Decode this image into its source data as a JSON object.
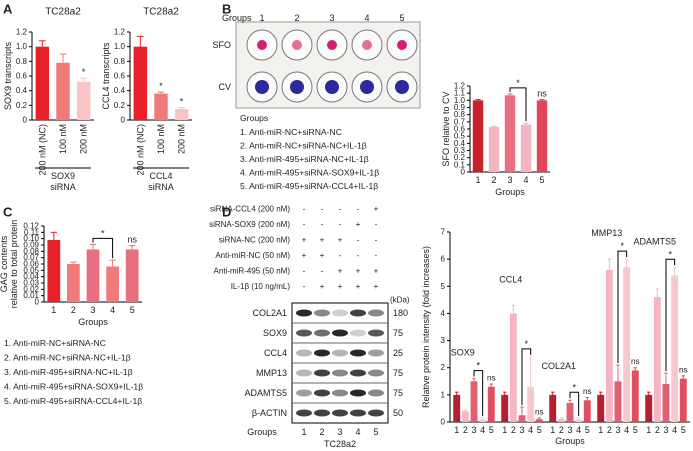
{
  "panels": [
    "A",
    "B",
    "C",
    "D"
  ],
  "chart_data": [
    {
      "type": "bar",
      "title": "TC28a2",
      "ylabel": "SOX9 transcripts",
      "categories": [
        "200 nM (NC)",
        "100 nM",
        "200 nM"
      ],
      "values": [
        1.0,
        0.78,
        0.52
      ],
      "errors": [
        0.08,
        0.12,
        0.05
      ],
      "colors": [
        "#e8202a",
        "#f07a7a",
        "#f8c4c4"
      ],
      "ylim": [
        0,
        1.2
      ],
      "yticks": [
        0,
        0.2,
        0.4,
        0.6,
        0.8,
        {
          "value": 1,
          "label": "1.0"
        },
        1.2
      ],
      "group_label": "SOX9",
      "group_sub": "siRNA",
      "annotations": [
        {
          "text": "*",
          "at": "200 nM"
        }
      ]
    },
    {
      "type": "bar",
      "title": "TC28a2",
      "ylabel": "CCL4 transcripts",
      "categories": [
        "200 nM (NC)",
        "100 nM",
        "200 nM"
      ],
      "values": [
        1.0,
        0.36,
        0.15
      ],
      "errors": [
        0.14,
        0.02,
        0.02
      ],
      "colors": [
        "#e8202a",
        "#f07a7a",
        "#f8c4c4"
      ],
      "ylim": [
        0,
        1.2
      ],
      "yticks": [
        0,
        0.2,
        0.4,
        0.6,
        0.8,
        {
          "value": 1,
          "label": "1.0"
        },
        1.2
      ],
      "group_label": "CCL4",
      "group_sub": "siRNA",
      "annotations": [
        {
          "text": "*",
          "at": "100 nM"
        },
        {
          "text": "*",
          "at": "200 nM"
        }
      ]
    },
    {
      "type": "bar",
      "ylabel": "SFO relative to CV",
      "xlabel": "Groups",
      "categories": [
        "1",
        "2",
        "3",
        "4",
        "5"
      ],
      "values": [
        1.0,
        0.63,
        1.07,
        0.66,
        1.0
      ],
      "errors": [
        0.01,
        0.01,
        0.02,
        0.02,
        0.01
      ],
      "colors": [
        "#c8202c",
        "#f4b6c0",
        "#e8707e",
        "#f4b6c0",
        "#e04658"
      ],
      "ylim": [
        0,
        1.2
      ],
      "yticks": [
        0,
        0.1,
        0.2,
        0.3,
        0.4,
        0.5,
        0.6,
        0.7,
        0.8,
        0.9,
        {
          "value": 1,
          "label": "1.0"
        },
        1.1,
        1.2
      ],
      "annotations": [
        {
          "text": "*",
          "from": "3",
          "to": "4"
        },
        {
          "text": "ns",
          "at": "5"
        }
      ]
    },
    {
      "type": "bar",
      "ylabel": [
        "GAG contents",
        "relative to total protein"
      ],
      "xlabel": "Groups",
      "categories": [
        "1",
        "2",
        "3",
        "4",
        "5"
      ],
      "values": [
        0.098,
        0.06,
        0.083,
        0.056,
        0.083
      ],
      "errors": [
        0.012,
        0.003,
        0.008,
        0.01,
        0.006
      ],
      "colors": [
        "#e8202a",
        "#f07a7a",
        "#e8707e",
        "#f07a7a",
        "#e8707e"
      ],
      "ylim": [
        0,
        0.12
      ],
      "yticks": [
        0,
        0.01,
        0.02,
        0.03,
        0.04,
        0.05,
        0.06,
        0.07,
        0.08,
        0.09,
        {
          "value": 0.1,
          "label": "0.10"
        },
        0.11,
        {
          "value": 0.12,
          "label": "0.12"
        }
      ],
      "annotations": [
        {
          "text": "*",
          "from": "3",
          "to": "4"
        },
        {
          "text": "ns",
          "at": "5"
        }
      ]
    },
    {
      "type": "grouped_bar",
      "ylabel": "Relative protein intensity (fold increases)",
      "xlabel": "Groups",
      "categories": [
        "SOX9",
        "CCL4",
        "COL2A1",
        "MMP13",
        "ADAMTS5"
      ],
      "bar_labels": [
        "1",
        "2",
        "3",
        "4",
        "5"
      ],
      "series": [
        {
          "color": "#b5202e",
          "values": [
            1.0,
            1.0,
            1.0,
            1.0,
            1.0
          ],
          "errors": [
            0.1,
            0.1,
            0.1,
            0.1,
            0.1
          ]
        },
        {
          "color": "#f4b6c0",
          "values": [
            0.4,
            4.0,
            0.1,
            5.6,
            4.6
          ],
          "errors": [
            0.05,
            0.3,
            0.05,
            0.4,
            0.3
          ]
        },
        {
          "color": "#e06070",
          "values": [
            1.5,
            0.25,
            0.7,
            1.5,
            1.4
          ],
          "errors": [
            0.1,
            0.3,
            0.1,
            0.6,
            0.4
          ]
        },
        {
          "color": "#f7c8d0",
          "values": [
            0.1,
            1.3,
            0.1,
            5.7,
            5.4
          ],
          "errors": [
            0.05,
            1.1,
            0.05,
            0.3,
            0.3
          ]
        },
        {
          "color": "#e05060",
          "values": [
            1.3,
            0.1,
            0.8,
            1.9,
            1.6
          ],
          "errors": [
            0.1,
            0.05,
            0.1,
            0.1,
            0.1
          ]
        }
      ],
      "ylim": [
        0,
        7
      ],
      "yticks": [
        0,
        1,
        2,
        3,
        4,
        5,
        6,
        7
      ],
      "annotations": [
        {
          "text": "*",
          "group": "SOX9",
          "from": "3",
          "to": "4"
        },
        {
          "text": "ns",
          "group": "SOX9",
          "at": "5"
        },
        {
          "text": "*",
          "group": "CCL4",
          "from": "3",
          "to": "4"
        },
        {
          "text": "ns",
          "group": "CCL4",
          "at": "5"
        },
        {
          "text": "*",
          "group": "COL2A1",
          "from": "3",
          "to": "4"
        },
        {
          "text": "ns",
          "group": "COL2A1",
          "at": "5"
        },
        {
          "text": "*",
          "group": "MMP13",
          "from": "3",
          "to": "4"
        },
        {
          "text": "ns",
          "group": "MMP13",
          "at": "5"
        },
        {
          "text": "*",
          "group": "ADAMTS5",
          "from": "3",
          "to": "4"
        },
        {
          "text": "ns",
          "group": "ADAMTS5",
          "at": "5"
        }
      ]
    }
  ],
  "plate": {
    "header": "Groups",
    "lanes": [
      "1",
      "2",
      "3",
      "4",
      "5"
    ],
    "rows": [
      "SFO",
      "CV"
    ]
  },
  "legend_b": {
    "title": "Groups",
    "items": [
      "1. Anti-miR-NC+siRNA-NC",
      "2. Anti-miR-NC+siRNA-NC+IL-1β",
      "3. Anti-miR-495+siRNA-NC+IL-1β",
      "4. Anti-miR-495+siRNA-SOX9+IL-1β",
      "5. Anti-miR-495+siRNA-CCL4+IL-1β"
    ]
  },
  "legend_c": {
    "items": [
      "1. Anti-miR-NC+siRNA-NC",
      "2. Anti-miR-NC+siRNA-NC+IL-1β",
      "3. Anti-miR-495+siRNA-NC+IL-1β",
      "4. Anti-miR-495+siRNA-SOX9+IL-1β",
      "5. Anti-miR-495+siRNA-CCL4+IL-1β"
    ]
  },
  "blot": {
    "treatments": [
      {
        "label": "siRNA-CCL4 (200 nM)",
        "marks": [
          "-",
          "-",
          "-",
          "-",
          "+"
        ]
      },
      {
        "label": "siRNA-SOX9 (200 nM)",
        "marks": [
          "-",
          "-",
          "-",
          "+",
          "-"
        ]
      },
      {
        "label": "siRNA-NC (200 nM)",
        "marks": [
          "+",
          "+",
          "+",
          "-",
          "-"
        ]
      },
      {
        "label": "Anti-miR-NC (50 nM)",
        "marks": [
          "+",
          "+",
          "-",
          "-",
          "-"
        ]
      },
      {
        "label": "Anti-miR-495 (50 nM)",
        "marks": [
          "-",
          "-",
          "+",
          "+",
          "+"
        ]
      },
      {
        "label": "IL-1β (10 ng/mL)",
        "marks": [
          "-",
          "+",
          "+",
          "+",
          "+"
        ]
      }
    ],
    "unit": "(kDa)",
    "proteins": [
      {
        "name": "COL2A1",
        "kda": "180"
      },
      {
        "name": "SOX9",
        "kda": "75"
      },
      {
        "name": "CCL4",
        "kda": "25"
      },
      {
        "name": "MMP13",
        "kda": "75"
      },
      {
        "name": "ADAMTS5",
        "kda": "75"
      },
      {
        "name": "β-ACTIN",
        "kda": "50"
      }
    ],
    "groups_label": "Groups",
    "lanes": [
      "1",
      "2",
      "3",
      "4",
      "5"
    ],
    "cell_line": "TC28a2"
  }
}
